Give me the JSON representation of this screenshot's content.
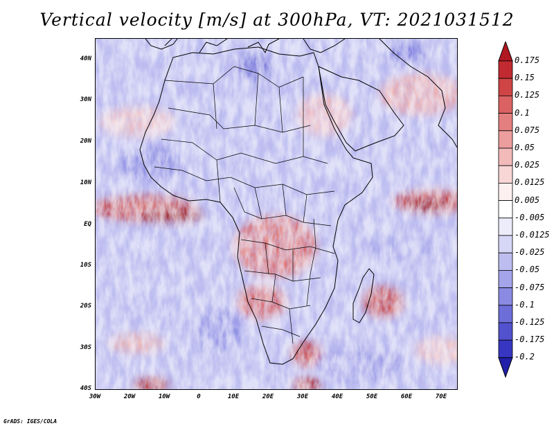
{
  "title": "Vertical velocity [m/s] at 300hPa, VT: 2021031512",
  "lat_labels": [
    "40N",
    "30N",
    "20N",
    "10N",
    "EQ",
    "10S",
    "20S",
    "30S",
    "40S"
  ],
  "lon_labels": [
    "30W",
    "20W",
    "10W",
    "0",
    "10E",
    "20E",
    "30E",
    "40E",
    "50E",
    "60E",
    "70E"
  ],
  "colorbar": {
    "labels": [
      "0.175",
      "0.15",
      "0.125",
      "0.1",
      "0.075",
      "0.05",
      "0.025",
      "0.0125",
      "0.005",
      "-0.005",
      "-0.0125",
      "-0.025",
      "-0.05",
      "-0.075",
      "-0.1",
      "-0.125",
      "-0.175",
      "-0.2"
    ],
    "colors": [
      "#b01822",
      "#c02a30",
      "#cf4444",
      "#db6262",
      "#e47f7f",
      "#ec9d9d",
      "#f3baba",
      "#f8d6d6",
      "#fdf0f0",
      "#ffffff",
      "#ececfb",
      "#d6d6f6",
      "#bdbdf0",
      "#a4a4ea",
      "#8a8ae2",
      "#6e6ed9",
      "#5252cf",
      "#3636c2",
      "#2020aa"
    ]
  },
  "footer": "GrADS: IGES/COLA"
}
